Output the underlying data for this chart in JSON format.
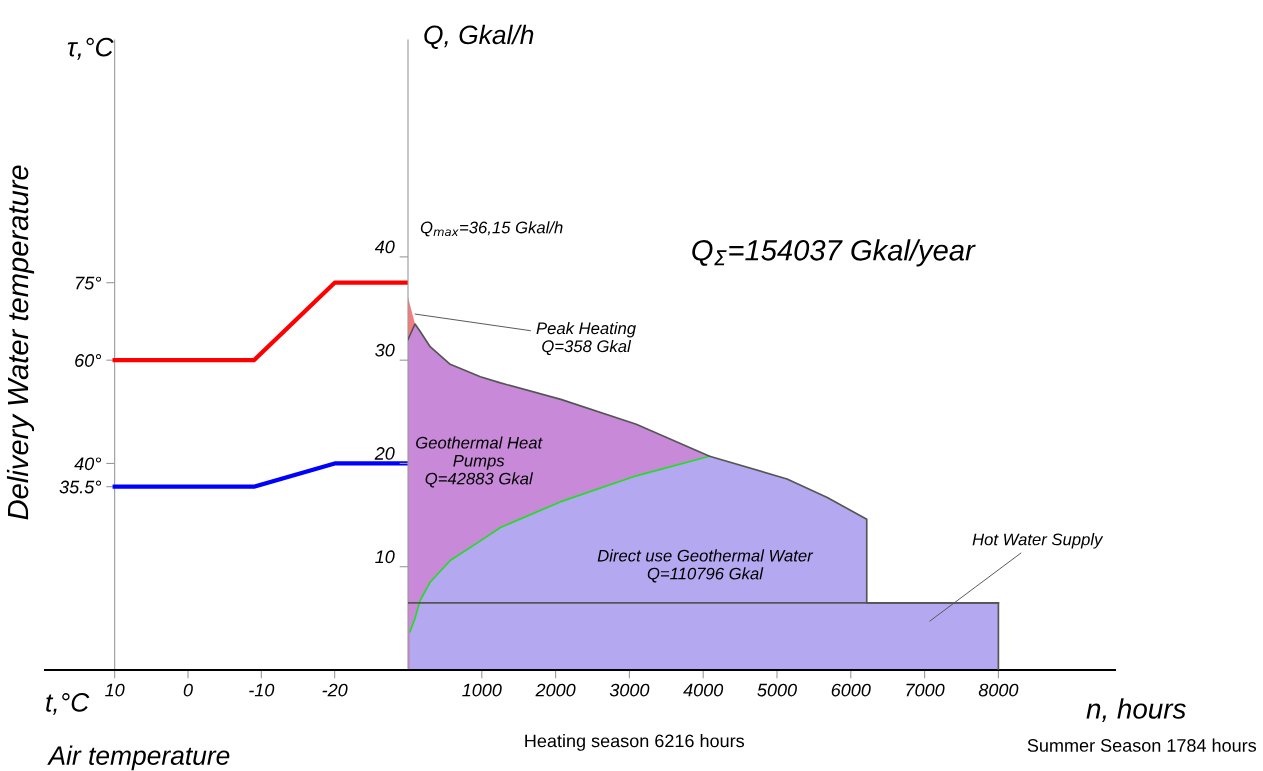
{
  "chart_data": [
    {
      "type": "line",
      "ylabel": "Delivery Water temperature",
      "xlabel": "Air temperature",
      "annotations": [
        "τ,°C",
        "t,°C"
      ],
      "xlim": [
        19.5,
        -30
      ],
      "xticks": [
        10,
        0,
        -10,
        -20
      ],
      "ylim": [
        0,
        122
      ],
      "yticks": [
        {
          "value": 35.5,
          "label": "35.5°"
        },
        {
          "value": 40,
          "label": "40°"
        },
        {
          "value": 60,
          "label": "60°"
        },
        {
          "value": 75,
          "label": "75°"
        }
      ],
      "grid": false,
      "marker": "none",
      "line_style": "solid",
      "series": [
        {
          "color": "#ff0000",
          "x": [
            10,
            -9,
            -20,
            -30
          ],
          "values": [
            60,
            60,
            75,
            75
          ]
        },
        {
          "color": "#0000ff",
          "x": [
            10,
            -9,
            -20,
            -30
          ],
          "values": [
            35.5,
            35.5,
            40,
            40
          ]
        }
      ]
    },
    {
      "type": "area",
      "title": "Q$_{Σ}$=154037 Gkal/year",
      "ylabel": "Q, Gkal/h",
      "xlabel": "n, hours",
      "annotations": [
        "Q$_{max}$=36,15 Gkal/h",
        {
          "text": "Peak Heating\nQ=358 Gkal",
          "x": 60,
          "y": 34.5
        },
        "Geothermal Heat\nPumps\nQ=42883 Gkal",
        "Direct use Geothermal Water\nQ=110796 Gkal",
        "Hot Water Supply",
        "Heating season 6216 hours",
        "Summer Season 1784 hours"
      ],
      "xlim": [
        0,
        9580
      ],
      "xticks": [
        1000,
        2000,
        3000,
        4000,
        5000,
        6000,
        7000,
        8000
      ],
      "ylim": [
        0,
        61
      ],
      "yticks": [
        10,
        20,
        30,
        40
      ],
      "grid": false,
      "series": [
        {
          "type": "area",
          "color": "#f47c7c",
          "x": [
            0,
            95
          ],
          "values": [
            36.1,
            33.5
          ]
        },
        {
          "type": "area",
          "color": "#c88ad8",
          "x": [
            0,
            95,
            163,
            300,
            572,
            981,
            1253,
            2071,
            3093,
            4087
          ],
          "values": [
            32,
            33.5,
            32.8,
            31.3,
            29.6,
            28.4,
            27.8,
            26.2,
            23.8,
            20.7
          ]
        },
        {
          "type": "area",
          "color": "#b4a8f0",
          "x": [
            27,
            95,
            163,
            300,
            572,
            981,
            1253,
            2071,
            3093,
            4087,
            5136,
            5681,
            6216,
            6216,
            8000,
            8000
          ],
          "values": [
            3.7,
            5,
            6.7,
            8.5,
            10.6,
            12.5,
            13.8,
            16.3,
            18.8,
            20.7,
            18.5,
            16.7,
            14.6,
            6.5,
            6.5,
            0
          ]
        },
        {
          "type": "line",
          "color": "#22dd22",
          "x": [
            27,
            95,
            163,
            300,
            572,
            981,
            1253,
            2071,
            3093,
            4087
          ],
          "values": [
            3.7,
            5,
            6.7,
            8.5,
            10.6,
            12.5,
            13.8,
            16.3,
            18.8,
            20.7
          ]
        },
        {
          "type": "line",
          "color": "#555555",
          "x": [
            0,
            95,
            163,
            300,
            572,
            981,
            1253,
            2071,
            3093,
            4087,
            5136,
            5681,
            6216,
            6216,
            8000,
            8000
          ],
          "values": [
            32,
            33.5,
            32.8,
            31.3,
            29.6,
            28.4,
            27.8,
            26.2,
            23.8,
            20.7,
            18.5,
            16.7,
            14.6,
            6.5,
            6.5,
            0
          ]
        },
        {
          "type": "line",
          "color": "#555555",
          "x": [
            0,
            8000
          ],
          "values": [
            6.5,
            6.5
          ]
        }
      ]
    }
  ]
}
